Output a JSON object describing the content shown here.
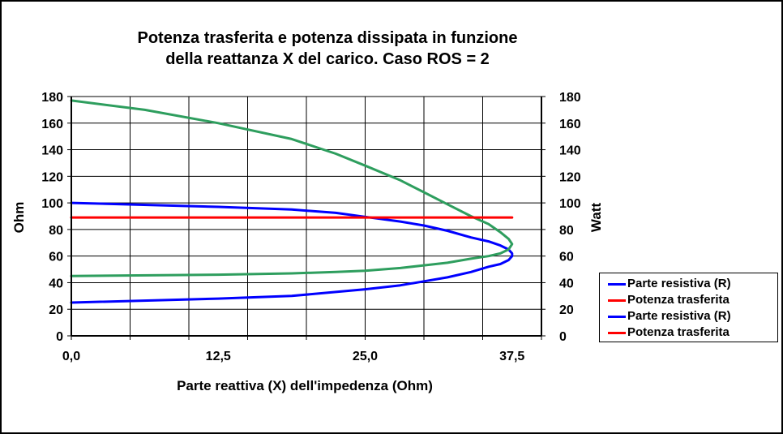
{
  "chart_data": {
    "type": "line",
    "title_lines": [
      "Potenza trasferita e potenza dissipata in funzione",
      "della reattanza X del carico. Caso ROS = 2"
    ],
    "xlabel": "Parte reattiva (X) dell'impedenza (Ohm)",
    "ylabel_left": "Ohm",
    "ylabel_right": "Watt",
    "xlim": [
      0,
      40
    ],
    "ylim": [
      0,
      180
    ],
    "x_tick_labels": [
      "0,0",
      "12,5",
      "25,0",
      "37,5"
    ],
    "x_tick_values": [
      0,
      12.5,
      25,
      37.5
    ],
    "y_tick_values": [
      0,
      20,
      40,
      60,
      80,
      100,
      120,
      140,
      160,
      180
    ],
    "grid": true,
    "legend_position": "right",
    "legend": [
      {
        "label": "Parte resistiva (R)",
        "color": "#0000ff"
      },
      {
        "label": "Potenza trasferita",
        "color": "#ff0000"
      },
      {
        "label": "Parte resistiva (R)",
        "color": "#0000ff"
      },
      {
        "label": "Potenza trasferita",
        "color": "#ff0000"
      }
    ],
    "series": [
      {
        "color": "#0000ff",
        "x": [
          0,
          12.5,
          18.75,
          22.5,
          25,
          28,
          30,
          32,
          34,
          35.5,
          36.5,
          37.2,
          37.5,
          37.5,
          37.2,
          36.5,
          35.5,
          34,
          32,
          30,
          28,
          25,
          22.5,
          18.75,
          12.5,
          0
        ],
        "y": [
          100,
          97,
          95,
          92.5,
          89.5,
          86,
          83,
          79,
          74,
          71,
          68,
          65,
          62,
          60,
          57,
          54,
          52,
          48,
          44,
          41,
          38,
          35,
          33,
          30,
          28,
          25
        ]
      },
      {
        "color": "#2e9e5e",
        "x": [
          0,
          6.25,
          12.5,
          18.75,
          22.5,
          25,
          28,
          30,
          32,
          34,
          35.5,
          36.5,
          37.2,
          37.5,
          37.2,
          36.5,
          35.5,
          34,
          32,
          30,
          28,
          25,
          22.5,
          18.75,
          12.5,
          0
        ],
        "y": [
          177,
          170,
          160,
          148,
          137,
          128,
          117,
          108,
          99,
          90,
          84,
          78,
          73,
          69,
          65,
          62,
          60,
          58,
          55,
          53,
          51,
          49,
          48,
          47,
          46,
          45
        ]
      },
      {
        "color": "#ff0000",
        "x": [
          0,
          37.5
        ],
        "y": [
          89,
          89
        ]
      }
    ]
  }
}
